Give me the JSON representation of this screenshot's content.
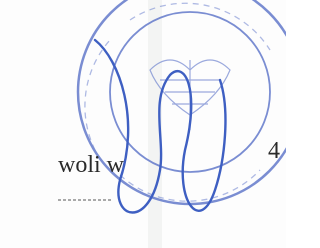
{
  "document": {
    "line_text": "woli w",
    "page_marker": "4"
  }
}
